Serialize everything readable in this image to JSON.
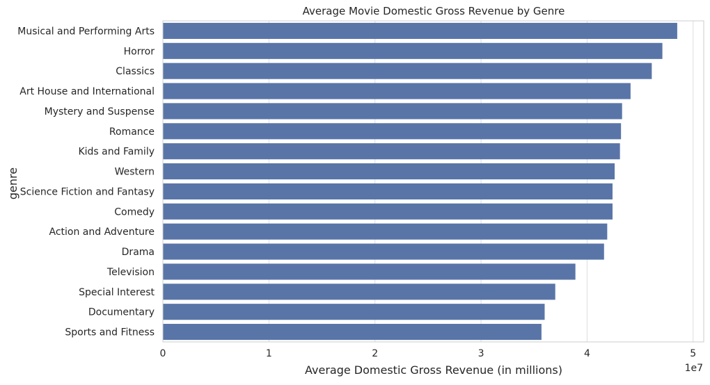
{
  "chart_data": {
    "type": "bar",
    "orientation": "horizontal",
    "title": "Average Movie Domestic Gross Revenue by Genre",
    "xlabel": "Average Domestic Gross Revenue (in millions)",
    "ylabel": "genre",
    "x_offset_label": "1e7",
    "xlim": [
      0,
      51000000
    ],
    "x_ticks": [
      0,
      10000000,
      20000000,
      30000000,
      40000000,
      50000000
    ],
    "x_tick_labels": [
      "0",
      "1",
      "2",
      "3",
      "4",
      "5"
    ],
    "grid": true,
    "bar_color": "#5975a8",
    "categories": [
      "Musical and Performing Arts",
      "Horror",
      "Classics",
      "Art House and International",
      "Mystery and Suspense",
      "Romance",
      "Kids and Family",
      "Western",
      "Science Fiction and Fantasy",
      "Comedy",
      "Action and Adventure",
      "Drama",
      "Television",
      "Special Interest",
      "Documentary",
      "Sports and Fitness"
    ],
    "values": [
      48500000,
      47100000,
      46100000,
      44100000,
      43300000,
      43200000,
      43100000,
      42600000,
      42400000,
      42400000,
      41900000,
      41600000,
      38900000,
      37000000,
      36000000,
      35700000
    ]
  }
}
